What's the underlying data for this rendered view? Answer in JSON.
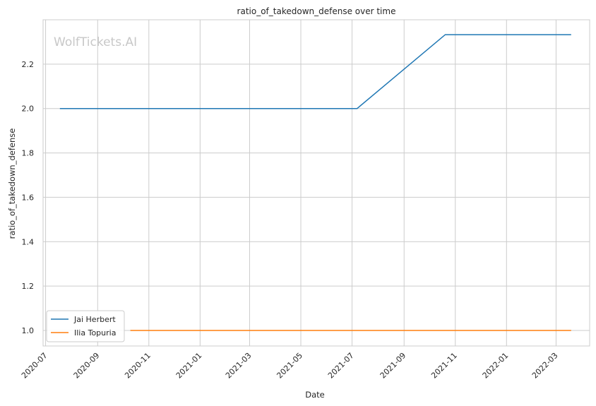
{
  "chart_data": {
    "type": "line",
    "title": "ratio_of_takedown_defense over time",
    "xlabel": "Date",
    "ylabel": "ratio_of_takedown_defense",
    "watermark": "WolfTickets.AI",
    "xlim": [
      "2020-06-28",
      "2022-04-10"
    ],
    "ylim": [
      0.93,
      2.4
    ],
    "x_ticks": [
      "2020-07",
      "2020-09",
      "2020-11",
      "2021-01",
      "2021-03",
      "2021-05",
      "2021-07",
      "2021-09",
      "2021-11",
      "2022-01",
      "2022-03"
    ],
    "y_ticks": [
      "1.0",
      "1.2",
      "1.4",
      "1.6",
      "1.8",
      "2.0",
      "2.2"
    ],
    "grid": true,
    "legend": "lower-left",
    "series": [
      {
        "name": "Jai Herbert",
        "color": "#1f77b4",
        "points": [
          {
            "x": "2020-07-18",
            "y": 2.0
          },
          {
            "x": "2021-07-07",
            "y": 2.0
          },
          {
            "x": "2021-10-20",
            "y": 2.333
          },
          {
            "x": "2022-03-19",
            "y": 2.333
          }
        ]
      },
      {
        "name": "Ilia Topuria",
        "color": "#ff7f0e",
        "points": [
          {
            "x": "2020-10-10",
            "y": 1.0
          },
          {
            "x": "2022-03-19",
            "y": 1.0
          }
        ]
      }
    ]
  }
}
